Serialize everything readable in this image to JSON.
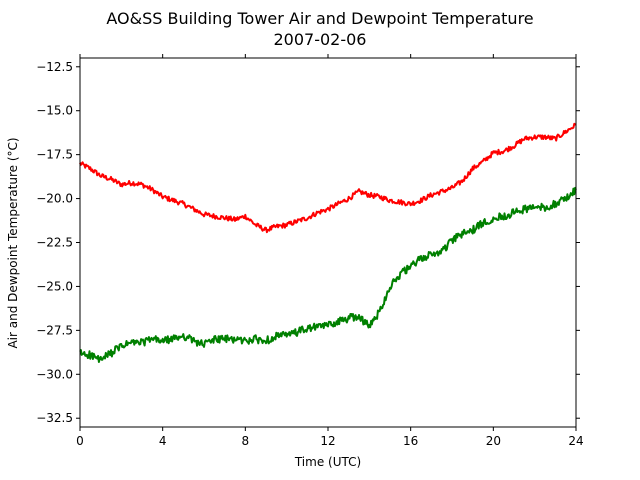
{
  "chart_data": {
    "type": "line",
    "title": "AO&SS Building Tower Air and Dewpoint Temperature",
    "subtitle": "2007-02-06",
    "xlabel": "Time (UTC)",
    "ylabel": "Air and Dewpoint Temperature (°C)",
    "xlim": [
      0,
      24
    ],
    "ylim": [
      -33.0,
      -12.0
    ],
    "x_ticks": [
      0,
      4,
      8,
      12,
      16,
      20,
      24
    ],
    "y_ticks": [
      -32.5,
      -30.0,
      -27.5,
      -25.0,
      -22.5,
      -20.0,
      -17.5,
      -15.0,
      -12.5
    ],
    "y_tick_labels": [
      "−32.5",
      "−30.0",
      "−27.5",
      "−25.0",
      "−22.5",
      "−20.0",
      "−17.5",
      "−15.0",
      "−12.5"
    ],
    "grid": false,
    "legend": "none",
    "series": [
      {
        "color": "#ff0000",
        "x": [
          0,
          0.5,
          1,
          1.5,
          2,
          2.5,
          3,
          3.5,
          4,
          4.5,
          5,
          5.5,
          6,
          6.5,
          7,
          7.5,
          8,
          8.5,
          9,
          9.5,
          10,
          10.5,
          11,
          11.5,
          12,
          12.5,
          13,
          13.5,
          14,
          14.5,
          15,
          15.5,
          16,
          16.5,
          17,
          17.5,
          18,
          18.5,
          19,
          19.5,
          20,
          20.5,
          21,
          21.5,
          22,
          22.5,
          23,
          23.5,
          24
        ],
        "y": [
          -18.0,
          -18.3,
          -18.7,
          -18.9,
          -19.2,
          -19.1,
          -19.2,
          -19.5,
          -19.9,
          -20.1,
          -20.3,
          -20.6,
          -20.9,
          -21.0,
          -21.1,
          -21.2,
          -21.0,
          -21.5,
          -21.8,
          -21.6,
          -21.5,
          -21.3,
          -21.1,
          -20.8,
          -20.6,
          -20.3,
          -20.0,
          -19.6,
          -19.8,
          -19.9,
          -20.1,
          -20.2,
          -20.3,
          -20.1,
          -19.8,
          -19.6,
          -19.4,
          -19.0,
          -18.3,
          -17.9,
          -17.4,
          -17.3,
          -17.0,
          -16.6,
          -16.5,
          -16.5,
          -16.6,
          -16.2,
          -15.8
        ]
      },
      {
        "color": "#008000",
        "x": [
          0,
          0.5,
          1,
          1.5,
          2,
          2.5,
          3,
          3.5,
          4,
          4.5,
          5,
          5.5,
          6,
          6.5,
          7,
          7.5,
          8,
          8.5,
          9,
          9.5,
          10,
          10.5,
          11,
          11.5,
          12,
          12.5,
          13,
          13.5,
          14,
          14.5,
          15,
          15.5,
          16,
          16.5,
          17,
          17.5,
          18,
          18.5,
          19,
          19.5,
          20,
          20.5,
          21,
          21.5,
          22,
          22.5,
          23,
          23.5,
          24
        ],
        "y": [
          -28.8,
          -28.9,
          -29.2,
          -28.8,
          -28.4,
          -28.2,
          -28.2,
          -28.0,
          -28.1,
          -28.0,
          -27.8,
          -28.1,
          -28.3,
          -28.0,
          -28.0,
          -28.0,
          -28.1,
          -28.0,
          -28.1,
          -27.8,
          -27.8,
          -27.6,
          -27.4,
          -27.3,
          -27.2,
          -27.0,
          -26.8,
          -26.7,
          -27.3,
          -26.4,
          -25.0,
          -24.3,
          -23.9,
          -23.4,
          -23.2,
          -23.0,
          -22.4,
          -22.0,
          -21.8,
          -21.4,
          -21.1,
          -21.0,
          -20.8,
          -20.6,
          -20.5,
          -20.5,
          -20.3,
          -20.0,
          -19.5
        ]
      }
    ]
  }
}
